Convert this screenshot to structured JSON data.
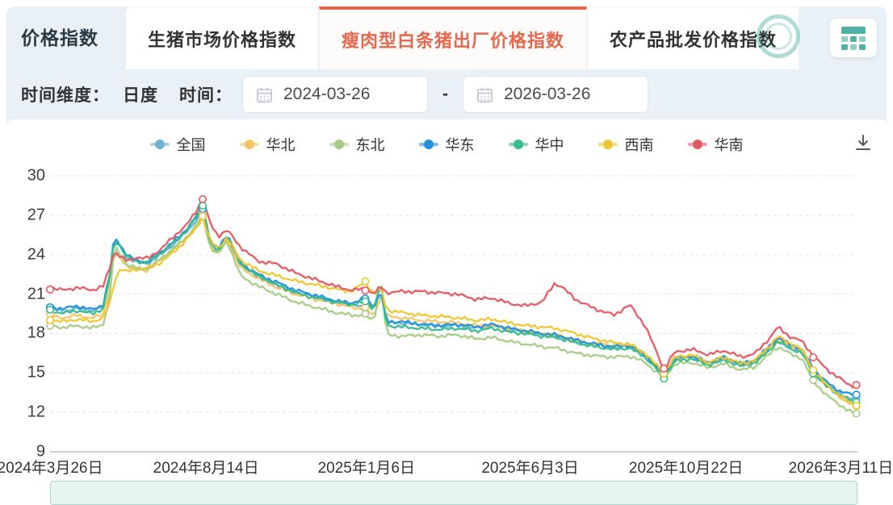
{
  "header": {
    "title": "价格指数",
    "tabs": [
      {
        "label": "生猪市场价格指数",
        "selected": false
      },
      {
        "label": "瘦肉型白条猪出厂价格指数",
        "selected": true
      },
      {
        "label": "农产品批发价格指数",
        "selected": false
      }
    ],
    "accent_color": "#e5674e",
    "icons": {
      "calculator": "calculator-icon",
      "badge": "circular-badge-icon"
    }
  },
  "filters": {
    "dimension_label": "时间维度：",
    "dimension_value": "日度",
    "time_label": "时间：",
    "date_start": "2024-03-26",
    "date_end": "2026-03-26",
    "separator": "-",
    "icons": {
      "calendar": "calendar-icon"
    }
  },
  "toolbar": {
    "icons": {
      "download": "download-icon"
    }
  },
  "chart_data": {
    "type": "line",
    "title": "",
    "xlabel": "",
    "ylabel": "",
    "ylim": [
      9,
      30
    ],
    "yticks": [
      9,
      12,
      15,
      18,
      21,
      24,
      27,
      30
    ],
    "grid": "dashed-horizontal",
    "legend_position": "top-center",
    "x_total_days": 730,
    "xticks": [
      {
        "day": 0,
        "label": "2024年3月26日"
      },
      {
        "day": 141,
        "label": "2024年8月14日"
      },
      {
        "day": 286,
        "label": "2025年1月6日"
      },
      {
        "day": 434,
        "label": "2025年6月3日"
      },
      {
        "day": 575,
        "label": "2025年10月22日"
      },
      {
        "day": 715,
        "label": "2026年3月11日"
      }
    ],
    "days": [
      0,
      12,
      25,
      38,
      48,
      54,
      58,
      63,
      70,
      78,
      88,
      100,
      112,
      124,
      132,
      138,
      145,
      152,
      160,
      172,
      188,
      205,
      222,
      240,
      258,
      272,
      285,
      293,
      299,
      304,
      318,
      335,
      352,
      368,
      385,
      400,
      415,
      430,
      445,
      456,
      462,
      475,
      492,
      510,
      524,
      538,
      555,
      565,
      580,
      595,
      610,
      625,
      638,
      650,
      658,
      668,
      680,
      690,
      702,
      712,
      722,
      729
    ],
    "marker_days": [
      0,
      138,
      285,
      555,
      690,
      729
    ],
    "series": [
      {
        "name": "全国",
        "color": "#6fb3d6",
        "values": [
          19.85,
          19.7,
          19.9,
          19.7,
          20.0,
          22.3,
          25.1,
          24.6,
          23.7,
          23.5,
          23.3,
          24.0,
          24.8,
          25.8,
          26.6,
          27.4,
          24.8,
          24.3,
          25.4,
          23.2,
          22.4,
          21.7,
          21.1,
          20.8,
          20.4,
          20.2,
          20.1,
          19.8,
          21.3,
          18.8,
          18.8,
          18.7,
          18.6,
          18.6,
          18.4,
          18.6,
          18.3,
          18.1,
          17.9,
          17.8,
          17.7,
          17.4,
          17.1,
          16.9,
          17.0,
          16.3,
          14.9,
          16.0,
          16.2,
          15.7,
          16.1,
          15.6,
          15.9,
          16.8,
          17.5,
          17.0,
          16.6,
          15.2,
          14.1,
          13.5,
          13.1,
          13.0
        ]
      },
      {
        "name": "华北",
        "color": "#f2c462",
        "values": [
          19.35,
          19.2,
          19.4,
          19.15,
          19.5,
          21.5,
          24.2,
          23.8,
          23.1,
          22.9,
          22.8,
          23.6,
          24.4,
          25.3,
          26.1,
          26.8,
          24.6,
          24.1,
          25.2,
          23.0,
          22.2,
          21.5,
          21.0,
          20.6,
          20.3,
          20.0,
          19.9,
          19.3,
          21.0,
          19.3,
          19.2,
          19.0,
          18.9,
          18.8,
          18.6,
          18.6,
          18.4,
          18.2,
          18.0,
          17.9,
          17.8,
          17.5,
          17.2,
          17.1,
          17.1,
          16.4,
          15.0,
          16.1,
          16.2,
          15.7,
          16.1,
          15.6,
          15.9,
          16.9,
          17.6,
          17.1,
          16.7,
          15.1,
          14.0,
          13.3,
          12.7,
          12.55
        ]
      },
      {
        "name": "东北",
        "color": "#a5cc85",
        "values": [
          18.6,
          18.45,
          18.6,
          18.4,
          18.7,
          20.8,
          24.6,
          24.1,
          23.2,
          23.0,
          22.9,
          23.7,
          24.5,
          25.4,
          26.2,
          27.1,
          24.5,
          24.0,
          25.1,
          22.4,
          21.6,
          21.0,
          20.4,
          20.0,
          19.6,
          19.4,
          19.4,
          18.9,
          22.6,
          17.9,
          17.8,
          17.9,
          17.8,
          17.9,
          17.6,
          17.7,
          17.4,
          17.2,
          17.0,
          16.9,
          16.8,
          16.5,
          16.3,
          16.2,
          16.3,
          15.8,
          14.6,
          15.7,
          15.8,
          15.4,
          15.7,
          15.2,
          15.5,
          16.4,
          17.0,
          16.5,
          16.1,
          14.4,
          13.3,
          12.7,
          12.1,
          11.9
        ]
      },
      {
        "name": "华东",
        "color": "#2091dc",
        "values": [
          20.0,
          19.9,
          20.1,
          19.8,
          20.2,
          22.5,
          25.4,
          24.8,
          23.9,
          23.6,
          23.4,
          24.2,
          25.0,
          26.0,
          26.8,
          27.6,
          25.0,
          24.4,
          25.6,
          23.4,
          22.5,
          21.9,
          21.3,
          20.9,
          20.5,
          20.3,
          20.7,
          20.0,
          21.4,
          18.9,
          18.9,
          18.7,
          18.6,
          18.7,
          18.5,
          18.7,
          18.4,
          18.2,
          18.0,
          17.9,
          17.8,
          17.5,
          17.2,
          17.0,
          17.1,
          16.4,
          14.9,
          16.1,
          16.3,
          15.8,
          16.2,
          15.7,
          16.0,
          17.0,
          17.7,
          17.2,
          16.8,
          15.3,
          14.3,
          13.7,
          13.4,
          13.3
        ]
      },
      {
        "name": "华中",
        "color": "#36bd8c",
        "values": [
          19.7,
          19.55,
          19.75,
          19.5,
          19.9,
          22.4,
          25.2,
          24.7,
          23.8,
          23.5,
          23.4,
          24.1,
          24.9,
          25.9,
          26.9,
          27.8,
          24.9,
          24.2,
          25.5,
          23.3,
          22.4,
          21.7,
          21.1,
          20.7,
          20.4,
          20.2,
          20.4,
          19.9,
          22.0,
          18.6,
          18.5,
          18.4,
          18.3,
          18.4,
          18.2,
          18.4,
          18.1,
          18.0,
          17.8,
          17.7,
          17.6,
          17.3,
          17.0,
          16.8,
          16.9,
          16.2,
          14.7,
          15.9,
          16.1,
          15.6,
          16.0,
          15.5,
          15.8,
          16.7,
          17.4,
          16.9,
          16.5,
          15.0,
          14.0,
          13.4,
          12.95,
          12.9
        ]
      },
      {
        "name": "西南",
        "color": "#eec62f",
        "values": [
          19.05,
          18.9,
          19.1,
          18.9,
          19.2,
          20.3,
          21.9,
          22.9,
          22.7,
          22.9,
          23.0,
          23.4,
          24.2,
          25.2,
          26.0,
          26.9,
          25.0,
          24.5,
          25.3,
          23.6,
          22.8,
          22.4,
          22.0,
          21.7,
          21.4,
          21.2,
          21.9,
          21.0,
          21.6,
          19.8,
          19.6,
          19.4,
          19.3,
          19.2,
          19.0,
          19.1,
          18.8,
          18.6,
          18.5,
          18.4,
          18.3,
          18.0,
          17.6,
          17.3,
          17.2,
          16.5,
          15.0,
          16.2,
          16.4,
          15.8,
          16.2,
          15.7,
          16.0,
          17.0,
          17.8,
          17.3,
          16.8,
          15.2,
          14.1,
          13.4,
          12.8,
          12.6
        ]
      },
      {
        "name": "华南",
        "color": "#e45862",
        "values": [
          21.5,
          21.3,
          21.5,
          21.3,
          21.6,
          23.0,
          24.3,
          23.9,
          23.5,
          23.8,
          23.7,
          24.4,
          25.4,
          26.3,
          27.3,
          28.3,
          26.3,
          25.4,
          25.9,
          24.6,
          23.5,
          23.3,
          22.6,
          22.1,
          21.6,
          21.3,
          21.4,
          21.0,
          21.6,
          21.1,
          21.2,
          21.2,
          21.1,
          21.0,
          20.6,
          20.7,
          20.3,
          20.1,
          20.4,
          21.8,
          21.6,
          20.6,
          19.9,
          19.4,
          20.2,
          18.6,
          15.3,
          16.6,
          16.8,
          16.4,
          16.7,
          16.2,
          16.5,
          17.6,
          18.5,
          17.8,
          17.4,
          16.3,
          15.3,
          14.7,
          14.1,
          14.0
        ]
      }
    ]
  }
}
